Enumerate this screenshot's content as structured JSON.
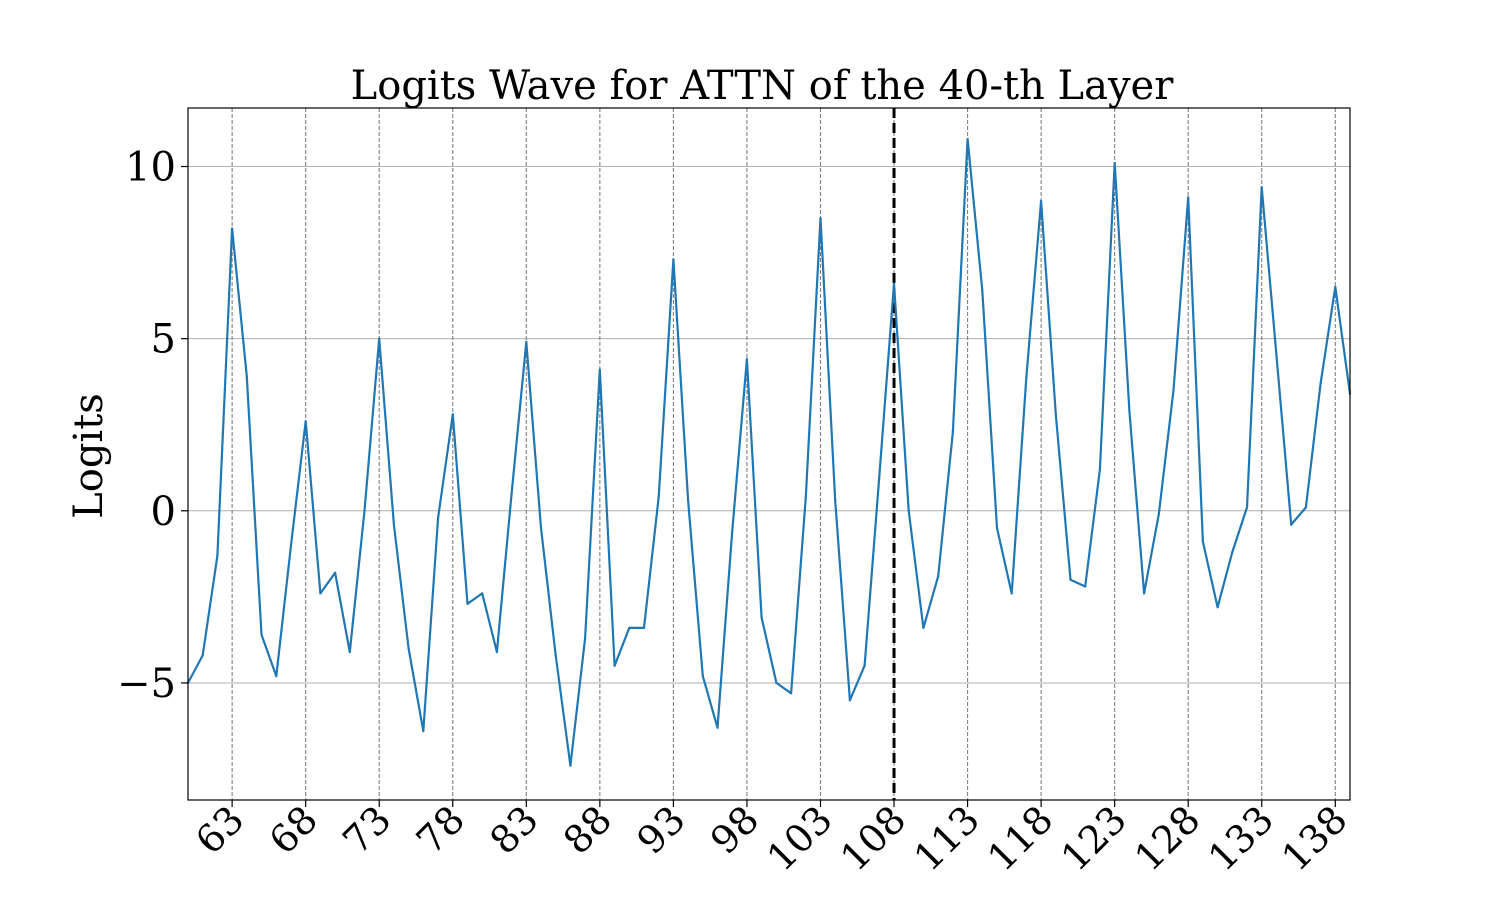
{
  "chart_data": {
    "type": "line",
    "title": "Logits Wave for ATTN of the 40-th Layer",
    "xlabel": "",
    "ylabel": "Logits",
    "xlim": [
      60,
      139
    ],
    "ylim": [
      -8.4,
      11.7
    ],
    "x_ticks": [
      63,
      68,
      73,
      78,
      83,
      88,
      93,
      98,
      103,
      108,
      113,
      118,
      123,
      128,
      133,
      138
    ],
    "y_ticks": [
      -5,
      0,
      5,
      10
    ],
    "y_tick_labels": [
      "−5",
      "0",
      "5",
      "10"
    ],
    "grid": "horizontal at y ticks; vertical dashed at x ticks",
    "marker_line_x": 108,
    "line_color": "#1f77b4",
    "series": [
      {
        "x": [
          60,
          61,
          62,
          63,
          64,
          65,
          66,
          67,
          68,
          69,
          70,
          71,
          72,
          73,
          74,
          75,
          76,
          77,
          78,
          79,
          80,
          81,
          82,
          83,
          84,
          85,
          86,
          87,
          88,
          89,
          90,
          91,
          92,
          93,
          94,
          95,
          96,
          97,
          98,
          99,
          100,
          101,
          102,
          103,
          104,
          105,
          106,
          107,
          108,
          109,
          110,
          111,
          112,
          113,
          114,
          115,
          116,
          117,
          118,
          119,
          120,
          121,
          122,
          123,
          124,
          125,
          126,
          127,
          128,
          129,
          130,
          131,
          132,
          133,
          134,
          135,
          136,
          137,
          138,
          139
        ],
        "values": [
          -5.0,
          -4.2,
          -1.3,
          8.2,
          3.9,
          -3.6,
          -4.8,
          -1.0,
          2.6,
          -2.4,
          -1.8,
          -4.1,
          0.0,
          5.0,
          -0.4,
          -4.0,
          -6.4,
          -0.2,
          2.8,
          -2.7,
          -2.4,
          -4.1,
          0.5,
          4.9,
          -0.5,
          -4.2,
          -7.4,
          -3.7,
          4.1,
          -4.5,
          -3.4,
          -3.4,
          0.4,
          7.3,
          0.3,
          -4.8,
          -6.3,
          -0.6,
          4.4,
          -3.1,
          -5.0,
          -5.3,
          0.4,
          8.5,
          0.3,
          -5.5,
          -4.5,
          1.0,
          6.6,
          0.0,
          -3.4,
          -1.9,
          2.3,
          10.8,
          6.4,
          -0.5,
          -2.4,
          3.9,
          9.0,
          2.8,
          -2.0,
          -2.2,
          1.2,
          10.1,
          2.9,
          -2.4,
          -0.1,
          3.5,
          9.1,
          -0.9,
          -2.8,
          -1.2,
          0.1,
          9.4,
          4.5,
          -0.4,
          0.1,
          3.7,
          6.5,
          3.4
        ]
      }
    ]
  }
}
